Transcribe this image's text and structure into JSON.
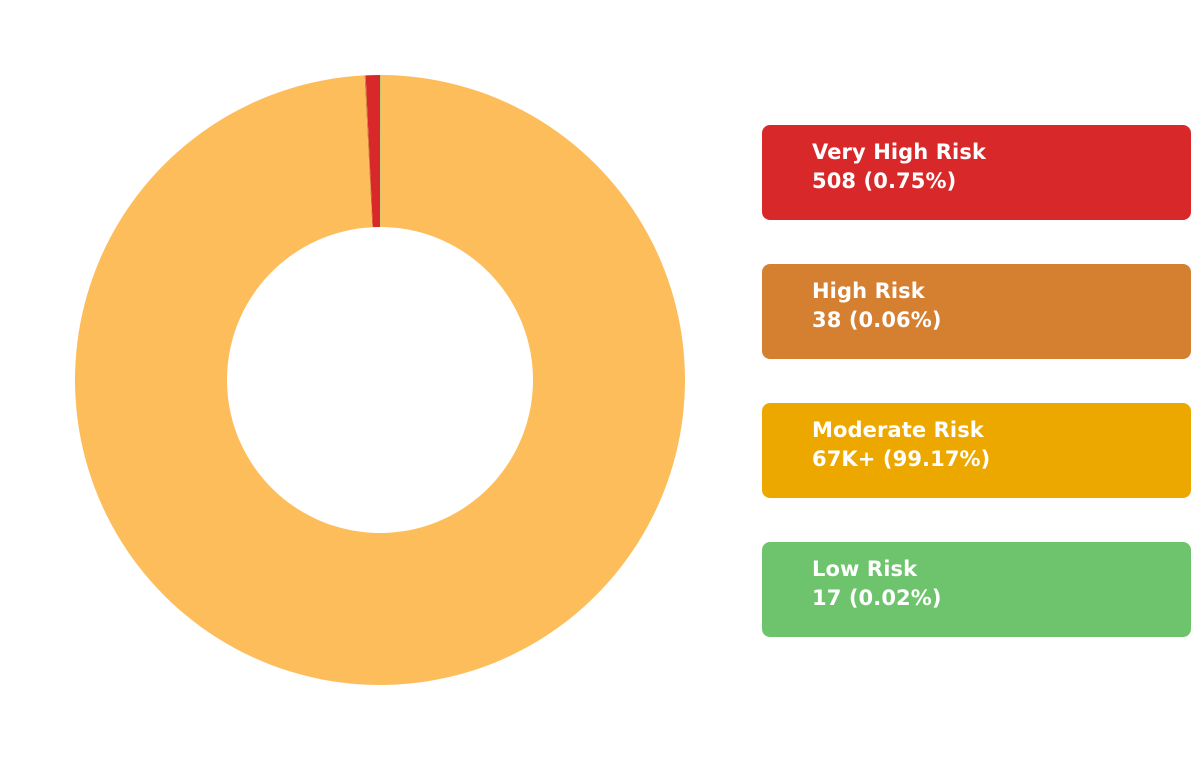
{
  "chart_data": {
    "type": "pie",
    "variant": "donut",
    "title": "",
    "categories": [
      "Very High Risk",
      "High Risk",
      "Moderate Risk",
      "Low Risk"
    ],
    "values": [
      508,
      38,
      67000,
      17
    ],
    "percentages": [
      0.75,
      0.06,
      99.17,
      0.02
    ],
    "display_values": [
      "508 (0.75%)",
      "38 (0.06%)",
      "67K+ (99.17%)",
      "17 (0.02%)"
    ],
    "colors": [
      "#d92829",
      "#d57f30",
      "#eda800",
      "#6dc46c"
    ],
    "slice_colors": [
      "#d92829",
      "#d57f30",
      "#fdbd5b",
      "#6dc46c"
    ],
    "legend_position": "right"
  }
}
